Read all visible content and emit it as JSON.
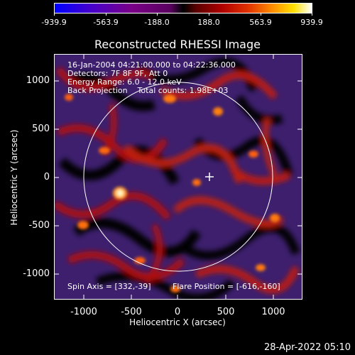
{
  "colorbar": {
    "ticks": [
      "-939.9",
      "-563.9",
      "-188.0",
      "188.0",
      "563.9",
      "939.9"
    ]
  },
  "plot": {
    "title": "Reconstructed RHESSI Image",
    "info_lines": [
      "16-Jan-2004 04:21:00.000 to 04:22:36.000",
      "Detectors: 7F 8F 9F, Att 0",
      "Energy Range: 6.0 - 12.0 keV",
      "Back Projection    Total counts: 1.98E+03"
    ],
    "spin_axis": "Spin Axis = [332,-39]",
    "flare_position": "Flare Position = [-616,-160]",
    "xlabel": "Heliocentric X (arcsec)",
    "ylabel": "Heliocentric Y (arcsec)",
    "xticks": [
      "-1000",
      "-500",
      "0",
      "500",
      "1000"
    ],
    "yticks": [
      "1000",
      "500",
      "0",
      "-500",
      "-1000"
    ]
  },
  "timestamp": "28-Apr-2022 05:10",
  "colors": {
    "background": "#000000",
    "foreground": "#ffffff"
  }
}
